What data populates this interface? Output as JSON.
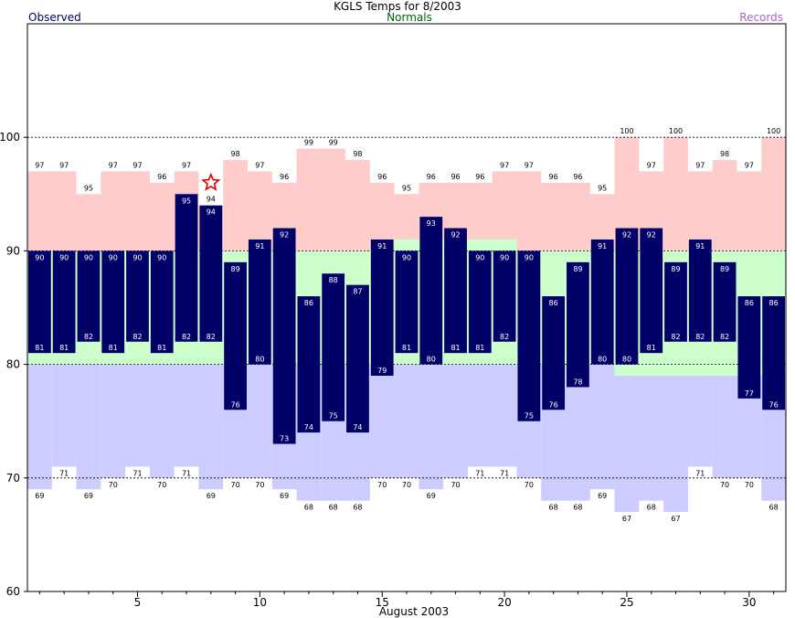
{
  "title": "KGLS Temps for 8/2003",
  "legend": {
    "observed": "Observed",
    "normals": "Normals",
    "records": "Records",
    "observed_color": "#000066",
    "normals_color": "#006600",
    "records_color": "#aa66cc"
  },
  "chart_data": {
    "type": "bar",
    "title": "KGLS Temps for 8/2003",
    "xlabel": "August 2003",
    "ylabel": "",
    "ylim": [
      60,
      110
    ],
    "xlim": [
      0.5,
      31.5
    ],
    "yticks": [
      60,
      70,
      80,
      90,
      100
    ],
    "xticks": [
      5,
      10,
      15,
      20,
      25,
      30
    ],
    "grid": "dashed at 70, 80, 90, 100",
    "days": [
      1,
      2,
      3,
      4,
      5,
      6,
      7,
      8,
      9,
      10,
      11,
      12,
      13,
      14,
      15,
      16,
      17,
      18,
      19,
      20,
      21,
      22,
      23,
      24,
      25,
      26,
      27,
      28,
      29,
      30,
      31
    ],
    "series": [
      {
        "name": "Observed",
        "kind": "high",
        "values": [
          90,
          90,
          90,
          90,
          90,
          90,
          95,
          94,
          89,
          91,
          92,
          86,
          88,
          87,
          91,
          90,
          93,
          92,
          90,
          90,
          90,
          86,
          89,
          91,
          92,
          92,
          89,
          91,
          89,
          86,
          86
        ]
      },
      {
        "name": "Observed",
        "kind": "low",
        "values": [
          81,
          81,
          82,
          81,
          82,
          81,
          82,
          82,
          76,
          80,
          73,
          74,
          75,
          74,
          79,
          81,
          80,
          81,
          81,
          82,
          75,
          76,
          78,
          80,
          80,
          81,
          82,
          82,
          82,
          77,
          76
        ]
      },
      {
        "name": "Records",
        "kind": "record_high",
        "values": [
          97,
          97,
          95,
          97,
          97,
          96,
          97,
          94,
          98,
          97,
          96,
          99,
          99,
          98,
          96,
          95,
          96,
          96,
          96,
          97,
          97,
          96,
          96,
          95,
          100,
          97,
          100,
          97,
          98,
          97,
          100
        ]
      },
      {
        "name": "Records",
        "kind": "record_low",
        "values": [
          69,
          71,
          69,
          70,
          71,
          70,
          71,
          69,
          70,
          70,
          69,
          68,
          68,
          68,
          70,
          70,
          69,
          70,
          71,
          71,
          70,
          68,
          68,
          69,
          67,
          68,
          67,
          71,
          70,
          70,
          68
        ]
      },
      {
        "name": "Normals",
        "kind": "normal_high",
        "values": [
          90,
          90,
          90,
          90,
          90,
          90,
          90,
          90,
          90,
          90,
          90,
          90,
          90,
          90,
          90,
          91,
          91,
          91,
          91,
          91,
          90,
          90,
          90,
          90,
          90,
          90,
          90,
          90,
          90,
          90,
          90
        ]
      },
      {
        "name": "Normals",
        "kind": "normal_low",
        "values": [
          80,
          80,
          80,
          80,
          80,
          80,
          80,
          80,
          80,
          80,
          80,
          80,
          80,
          80,
          80,
          80,
          80,
          80,
          80,
          80,
          80,
          80,
          80,
          80,
          79,
          79,
          79,
          79,
          79,
          79,
          79
        ]
      }
    ],
    "record_marker": {
      "day": 8,
      "value": 96,
      "label": "star-icon"
    },
    "colors": {
      "observed": "#000066",
      "record_band": "#ffcccc",
      "normal_band": "#ccffcc",
      "below_normal_band": "#ccccff",
      "record_marker": "#dd0000"
    }
  }
}
